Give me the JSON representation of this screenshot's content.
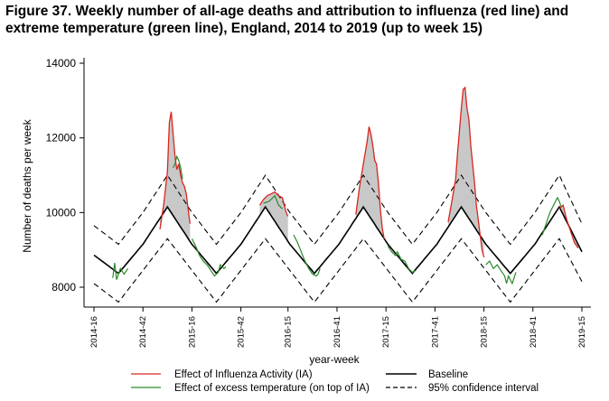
{
  "figure_title": "Figure 37. Weekly number of all-age deaths and attribution to influenza (red line) and extreme temperature (green line), England, 2014 to 2019 (up to week 15)",
  "colors": {
    "influenza": "#d7261e",
    "temperature": "#2a8a2a",
    "baseline": "#000000",
    "ci": "#000000",
    "observed_fill": "#c8c8c8"
  },
  "chart_data": {
    "type": "line",
    "title": "Figure 37. Weekly number of all-age deaths and attribution to influenza (red line) and extreme temperature (green line), England, 2014 to 2019 (up to week 15)",
    "xlabel": "year-week",
    "ylabel": "Number of deaths per week",
    "ylim": [
      7700,
      14200
    ],
    "y_ticks": [
      8000,
      10000,
      12000,
      14000
    ],
    "x_ticks": [
      "2014-16",
      "2014-42",
      "2015-16",
      "2015-42",
      "2016-15",
      "2016-41",
      "2017-15",
      "2017-41",
      "2018-15",
      "2018-41",
      "2019-15"
    ],
    "x_tick_index": [
      0,
      26,
      52,
      78,
      103,
      129,
      155,
      181,
      207,
      233,
      259
    ],
    "n_weeks": 260,
    "legend": {
      "influenza": "Effect of Influenza Activity (IA)",
      "temperature": "Effect of excess temperature (on top of IA)",
      "baseline": "Baseline",
      "ci": "95% confidence interval"
    },
    "series": [
      {
        "name": "Baseline",
        "points": [
          [
            0,
            8860
          ],
          [
            13,
            8370
          ],
          [
            26,
            9150
          ],
          [
            39,
            10150
          ],
          [
            52,
            9150
          ],
          [
            65,
            8370
          ],
          [
            78,
            9150
          ],
          [
            91,
            10150
          ],
          [
            104,
            9150
          ],
          [
            117,
            8370
          ],
          [
            130,
            9150
          ],
          [
            143,
            10150
          ],
          [
            156,
            9150
          ],
          [
            169,
            8370
          ],
          [
            182,
            9150
          ],
          [
            195,
            10150
          ],
          [
            208,
            9150
          ],
          [
            221,
            8370
          ],
          [
            234,
            9150
          ],
          [
            247,
            10150
          ],
          [
            259,
            8950
          ]
        ]
      },
      {
        "name": "95% confidence interval (upper)",
        "points": [
          [
            0,
            9650
          ],
          [
            13,
            9150
          ],
          [
            26,
            10000
          ],
          [
            39,
            11000
          ],
          [
            52,
            10000
          ],
          [
            65,
            9150
          ],
          [
            78,
            10000
          ],
          [
            91,
            11000
          ],
          [
            104,
            10000
          ],
          [
            117,
            9150
          ],
          [
            130,
            10000
          ],
          [
            143,
            11000
          ],
          [
            156,
            10000
          ],
          [
            169,
            9150
          ],
          [
            182,
            10000
          ],
          [
            195,
            11000
          ],
          [
            208,
            10000
          ],
          [
            221,
            9150
          ],
          [
            234,
            10000
          ],
          [
            247,
            11000
          ],
          [
            259,
            9700
          ]
        ]
      },
      {
        "name": "95% confidence interval (lower)",
        "points": [
          [
            0,
            8100
          ],
          [
            13,
            7600
          ],
          [
            26,
            8450
          ],
          [
            39,
            9300
          ],
          [
            52,
            8450
          ],
          [
            65,
            7600
          ],
          [
            78,
            8450
          ],
          [
            91,
            9300
          ],
          [
            104,
            8450
          ],
          [
            117,
            7600
          ],
          [
            130,
            8450
          ],
          [
            143,
            9300
          ],
          [
            156,
            8450
          ],
          [
            169,
            7600
          ],
          [
            182,
            8450
          ],
          [
            195,
            9300
          ],
          [
            208,
            8450
          ],
          [
            221,
            7600
          ],
          [
            234,
            8450
          ],
          [
            247,
            9300
          ],
          [
            259,
            8150
          ]
        ]
      },
      {
        "name": "Effect of Influenza Activity (IA)",
        "segments": [
          [
            [
              35,
              9550
            ],
            [
              37,
              10200
            ],
            [
              39,
              11100
            ],
            [
              40,
              12400
            ],
            [
              41,
              12700
            ],
            [
              42,
              12100
            ],
            [
              43,
              11500
            ],
            [
              44,
              11150
            ],
            [
              45,
              11300
            ],
            [
              46,
              11000
            ],
            [
              47,
              10800
            ],
            [
              48,
              10700
            ],
            [
              49,
              10500
            ],
            [
              50,
              10100
            ],
            [
              51,
              9700
            ]
          ],
          [
            [
              88,
              10200
            ],
            [
              90,
              10350
            ],
            [
              92,
              10450
            ],
            [
              94,
              10500
            ],
            [
              96,
              10550
            ],
            [
              98,
              10450
            ],
            [
              100,
              10400
            ],
            [
              101,
              10200
            ],
            [
              102,
              10000
            ],
            [
              103,
              9900
            ]
          ],
          [
            [
              139,
              9950
            ],
            [
              141,
              10700
            ],
            [
              143,
              11300
            ],
            [
              145,
              11900
            ],
            [
              146,
              12300
            ],
            [
              147,
              12100
            ],
            [
              148,
              11800
            ],
            [
              149,
              11400
            ],
            [
              150,
              11300
            ],
            [
              151,
              10800
            ],
            [
              152,
              10100
            ],
            [
              153,
              9600
            ],
            [
              154,
              9300
            ]
          ],
          [
            [
              188,
              9750
            ],
            [
              190,
              10300
            ],
            [
              192,
              10900
            ],
            [
              193,
              11600
            ],
            [
              194,
              12200
            ],
            [
              195,
              12800
            ],
            [
              196,
              13300
            ],
            [
              197,
              13350
            ],
            [
              198,
              12800
            ],
            [
              199,
              12500
            ],
            [
              200,
              11800
            ],
            [
              201,
              11300
            ],
            [
              202,
              10800
            ],
            [
              203,
              10200
            ],
            [
              204,
              9800
            ],
            [
              205,
              9400
            ],
            [
              206,
              9000
            ],
            [
              207,
              8800
            ]
          ],
          [
            [
              247,
              10100
            ],
            [
              249,
              10200
            ],
            [
              251,
              9800
            ],
            [
              253,
              9500
            ],
            [
              255,
              9200
            ],
            [
              257,
              9050
            ]
          ]
        ]
      },
      {
        "name": "Effect of excess temperature (on top of IA)",
        "segments": [
          [
            [
              10,
              8250
            ],
            [
              11,
              8650
            ],
            [
              12,
              8200
            ],
            [
              14,
              8500
            ],
            [
              16,
              8350
            ],
            [
              18,
              8500
            ]
          ],
          [
            [
              42,
              11200
            ],
            [
              43,
              11300
            ],
            [
              44,
              11500
            ],
            [
              45,
              11400
            ],
            [
              46,
              11200
            ],
            [
              47,
              10900
            ]
          ],
          [
            [
              52,
              9300
            ],
            [
              54,
              9100
            ],
            [
              56,
              8850
            ],
            [
              58,
              8700
            ],
            [
              60,
              8600
            ],
            [
              62,
              8450
            ],
            [
              64,
              8300
            ],
            [
              66,
              8400
            ],
            [
              67,
              8600
            ],
            [
              69,
              8500
            ],
            [
              70,
              8550
            ]
          ],
          [
            [
              90,
              10250
            ],
            [
              93,
              10300
            ],
            [
              96,
              10450
            ],
            [
              98,
              10200
            ],
            [
              100,
              10100
            ]
          ],
          [
            [
              106,
              9400
            ],
            [
              108,
              9200
            ],
            [
              110,
              8950
            ],
            [
              112,
              8700
            ],
            [
              114,
              8500
            ],
            [
              116,
              8350
            ],
            [
              118,
              8300
            ],
            [
              119,
              8350
            ],
            [
              120,
              8500
            ]
          ],
          [
            [
              156,
              9100
            ],
            [
              158,
              8950
            ],
            [
              160,
              8850
            ],
            [
              161,
              8950
            ],
            [
              163,
              8750
            ],
            [
              165,
              8700
            ],
            [
              167,
              8500
            ],
            [
              169,
              8400
            ],
            [
              171,
              8450
            ]
          ],
          [
            [
              208,
              8600
            ],
            [
              210,
              8700
            ],
            [
              212,
              8500
            ],
            [
              214,
              8600
            ],
            [
              216,
              8450
            ],
            [
              218,
              8300
            ],
            [
              219,
              8100
            ],
            [
              220,
              8300
            ],
            [
              222,
              8100
            ],
            [
              224,
              8400
            ]
          ],
          [
            [
              238,
              9400
            ],
            [
              240,
              9700
            ],
            [
              242,
              10000
            ],
            [
              244,
              10200
            ],
            [
              246,
              10400
            ],
            [
              247,
              10300
            ],
            [
              248,
              10150
            ]
          ]
        ]
      }
    ]
  }
}
